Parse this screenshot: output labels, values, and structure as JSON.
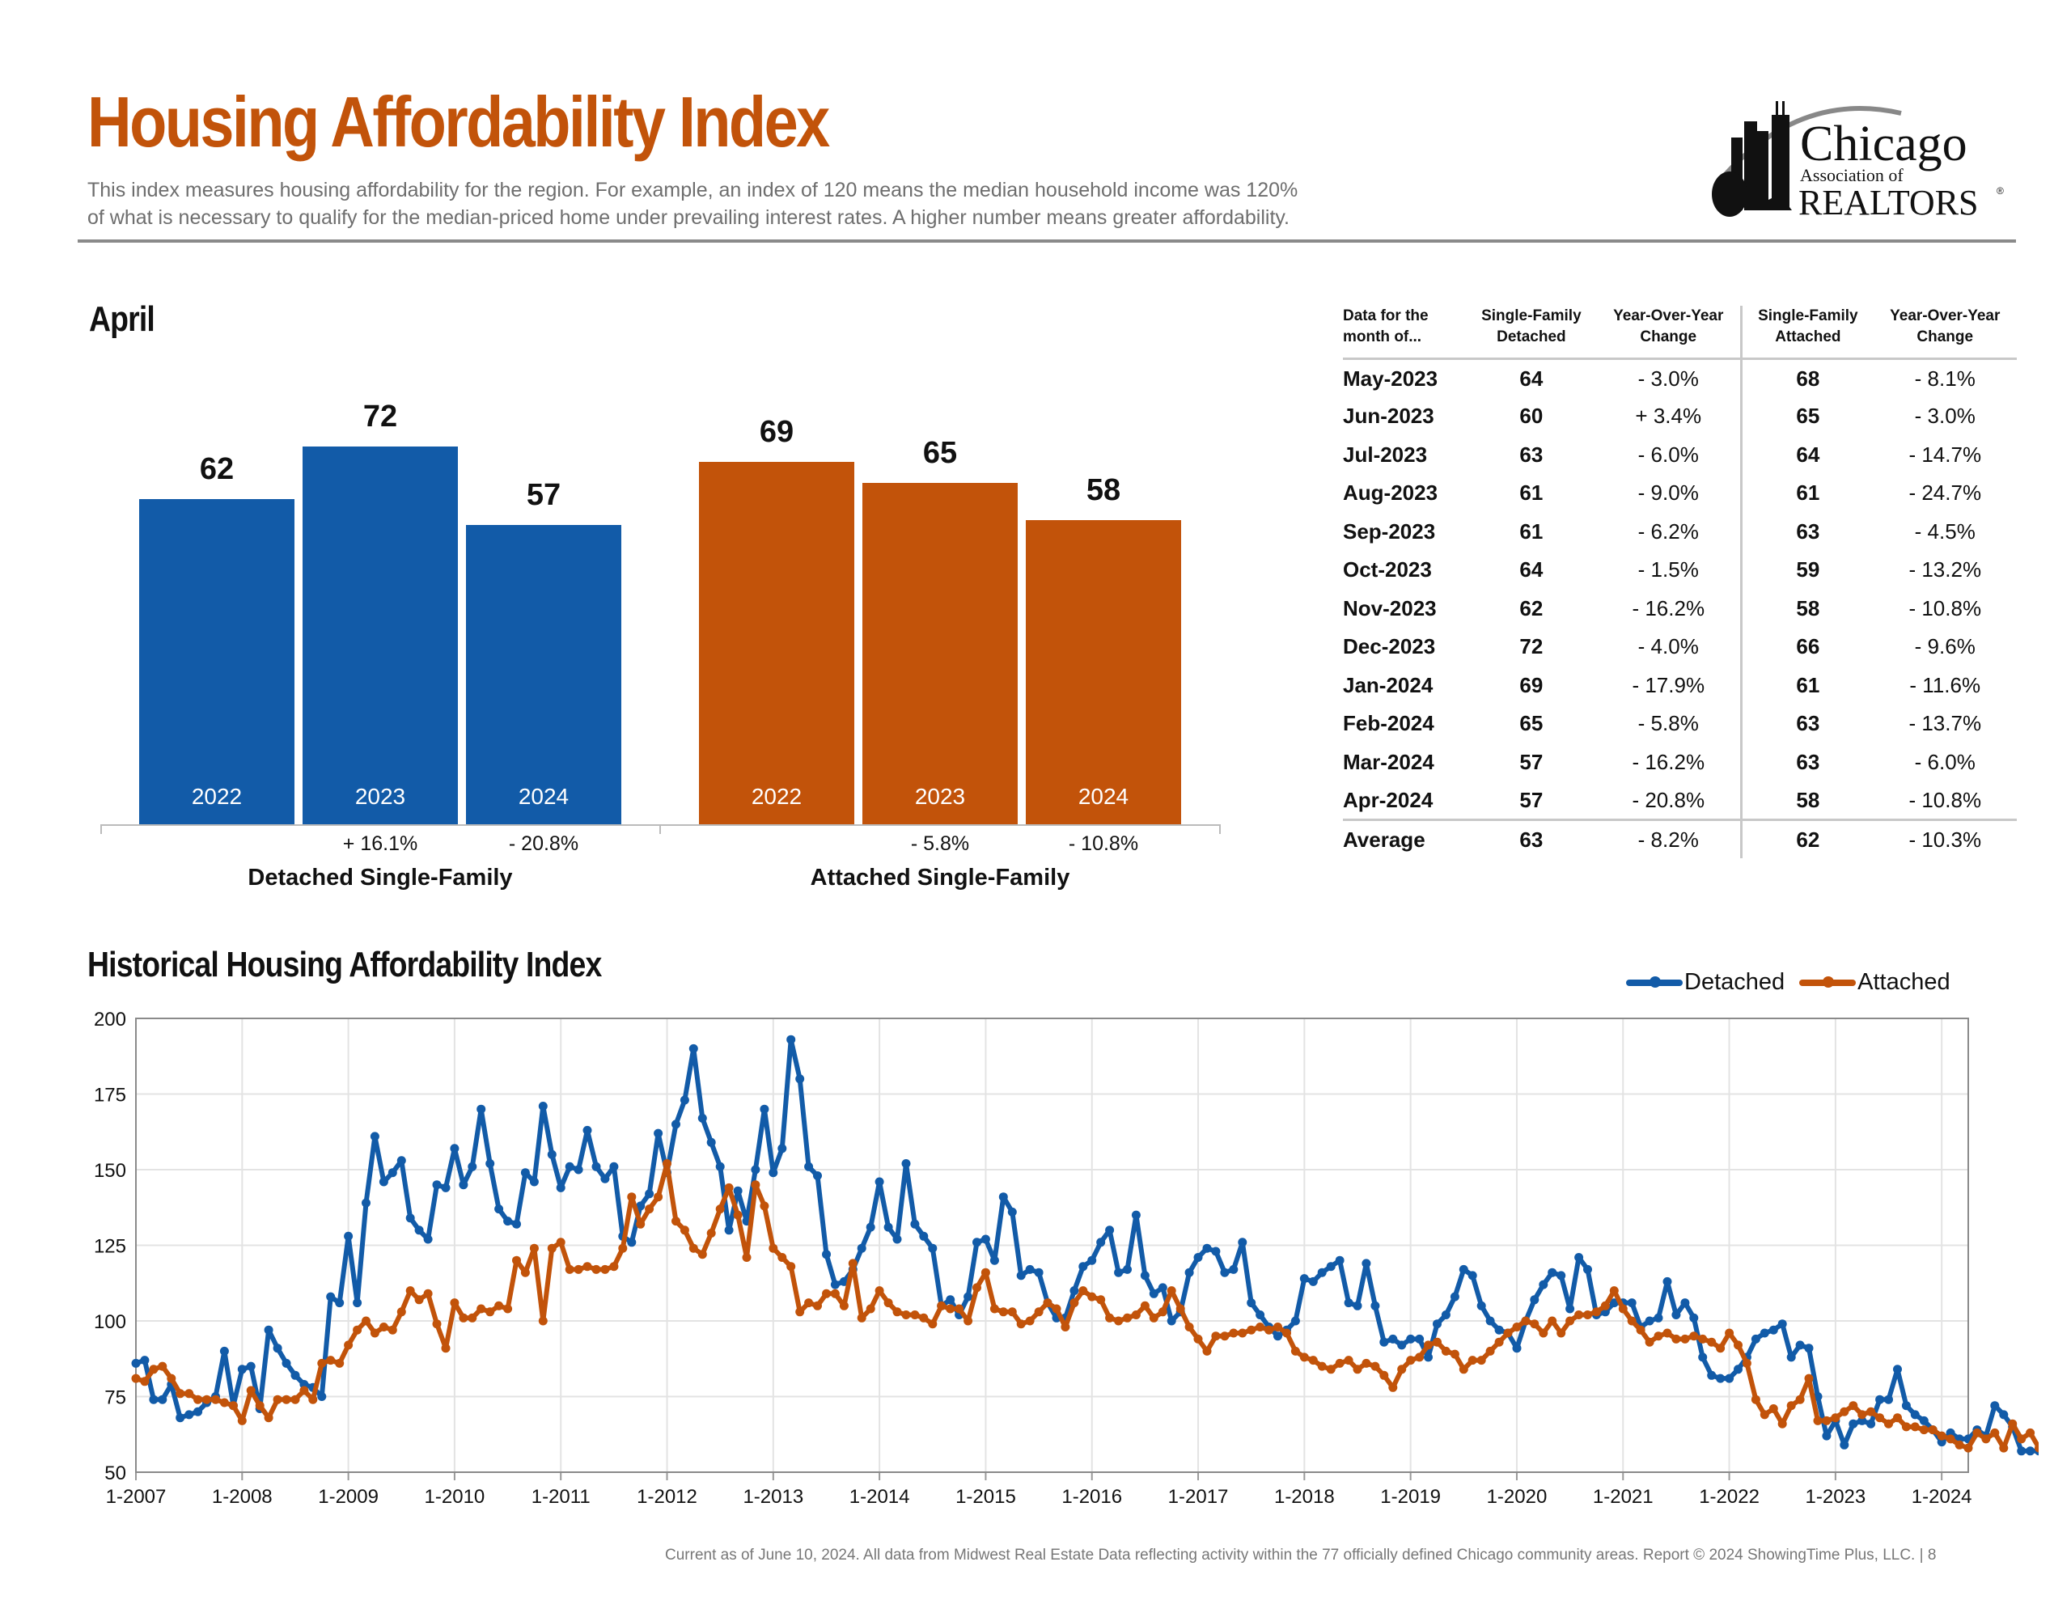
{
  "header": {
    "title": "Housing Affordability Index",
    "intro_line1": "This index measures housing affordability for the region. For example, an index of 120 means the median household income was 120%",
    "intro_line2": "of what is necessary to qualify for the median-priced home under prevailing interest rates. A higher number means greater affordability.",
    "logo": {
      "word1": "Chicago",
      "word2": "Association of",
      "word3": "REALTORS",
      "mark": "®"
    }
  },
  "colors": {
    "title": "#c2530a",
    "detached": "#125ba8",
    "attached": "#c2530a"
  },
  "april_section": {
    "title": "April"
  },
  "summary_table": {
    "headers": [
      "Data for the month of...",
      "Single-Family Detached",
      "Year-Over-Year Change",
      "Single-Family Attached",
      "Year-Over-Year Change"
    ],
    "header_lines": [
      [
        "Data for the",
        "month of..."
      ],
      [
        "Single-Family",
        "Detached"
      ],
      [
        "Year-Over-Year",
        "Change"
      ],
      [
        "Single-Family",
        "Attached"
      ],
      [
        "Year-Over-Year",
        "Change"
      ]
    ],
    "rows": [
      {
        "month": "May-2023",
        "detached": "64",
        "detached_yoy": "- 3.0%",
        "attached": "68",
        "attached_yoy": "- 8.1%"
      },
      {
        "month": "Jun-2023",
        "detached": "60",
        "detached_yoy": "+ 3.4%",
        "attached": "65",
        "attached_yoy": "- 3.0%"
      },
      {
        "month": "Jul-2023",
        "detached": "63",
        "detached_yoy": "- 6.0%",
        "attached": "64",
        "attached_yoy": "- 14.7%"
      },
      {
        "month": "Aug-2023",
        "detached": "61",
        "detached_yoy": "- 9.0%",
        "attached": "61",
        "attached_yoy": "- 24.7%"
      },
      {
        "month": "Sep-2023",
        "detached": "61",
        "detached_yoy": "- 6.2%",
        "attached": "63",
        "attached_yoy": "- 4.5%"
      },
      {
        "month": "Oct-2023",
        "detached": "64",
        "detached_yoy": "- 1.5%",
        "attached": "59",
        "attached_yoy": "- 13.2%"
      },
      {
        "month": "Nov-2023",
        "detached": "62",
        "detached_yoy": "- 16.2%",
        "attached": "58",
        "attached_yoy": "- 10.8%"
      },
      {
        "month": "Dec-2023",
        "detached": "72",
        "detached_yoy": "- 4.0%",
        "attached": "66",
        "attached_yoy": "- 9.6%"
      },
      {
        "month": "Jan-2024",
        "detached": "69",
        "detached_yoy": "- 17.9%",
        "attached": "61",
        "attached_yoy": "- 11.6%"
      },
      {
        "month": "Feb-2024",
        "detached": "65",
        "detached_yoy": "- 5.8%",
        "attached": "63",
        "attached_yoy": "- 13.7%"
      },
      {
        "month": "Mar-2024",
        "detached": "57",
        "detached_yoy": "- 16.2%",
        "attached": "63",
        "attached_yoy": "- 6.0%"
      },
      {
        "month": "Apr-2024",
        "detached": "57",
        "detached_yoy": "- 20.8%",
        "attached": "58",
        "attached_yoy": "- 10.8%"
      }
    ],
    "average": {
      "month": "Average",
      "detached": "63",
      "detached_yoy": "- 8.2%",
      "attached": "62",
      "attached_yoy": "- 10.3%"
    }
  },
  "historical_section": {
    "title": "Historical Housing Affordability Index"
  },
  "footer": {
    "text": "Current as of June 10, 2024.  All data from Midwest Real Estate Data reflecting activity within the 77 officially defined Chicago community areas. Report © 2024 ShowingTime Plus, LLC.  |  8"
  },
  "chart_data": [
    {
      "type": "bar",
      "title": "April",
      "ylim": [
        0,
        80
      ],
      "groups": [
        {
          "name": "Detached Single-Family",
          "color": "#125ba8",
          "categories": [
            "2022",
            "2023",
            "2024"
          ],
          "values": [
            62,
            72,
            57
          ],
          "changes": [
            "",
            "+ 16.1%",
            "- 20.8%"
          ]
        },
        {
          "name": "Attached Single-Family",
          "color": "#c2530a",
          "categories": [
            "2022",
            "2023",
            "2024"
          ],
          "values": [
            69,
            65,
            58
          ],
          "changes": [
            "",
            "- 5.8%",
            "- 10.8%"
          ]
        }
      ]
    },
    {
      "type": "line",
      "title": "Historical Housing Affordability Index",
      "xlabel": "",
      "ylabel": "",
      "x_start": "1-2007",
      "x_end": "4-2024",
      "frequency": "monthly",
      "x_tick_labels": [
        "1-2007",
        "1-2008",
        "1-2009",
        "1-2010",
        "1-2011",
        "1-2012",
        "1-2013",
        "1-2014",
        "1-2015",
        "1-2016",
        "1-2017",
        "1-2018",
        "1-2019",
        "1-2020",
        "1-2021",
        "1-2022",
        "1-2023",
        "1-2024"
      ],
      "y_ticks": [
        50,
        75,
        100,
        125,
        150,
        175,
        200
      ],
      "ylim": [
        50,
        200
      ],
      "grid": true,
      "legend": "top-right",
      "series": [
        {
          "name": "Detached",
          "color": "#125ba8",
          "values": [
            86,
            87,
            74,
            74,
            79,
            68,
            69,
            70,
            73,
            75,
            90,
            72,
            84,
            85,
            71,
            97,
            91,
            86,
            82,
            79,
            78,
            75,
            108,
            106,
            128,
            106,
            139,
            161,
            146,
            149,
            153,
            134,
            130,
            127,
            145,
            144,
            157,
            145,
            151,
            170,
            152,
            137,
            133,
            132,
            149,
            146,
            171,
            155,
            144,
            151,
            150,
            163,
            151,
            147,
            151,
            128,
            126,
            138,
            142,
            162,
            149,
            165,
            173,
            190,
            167,
            159,
            151,
            130,
            143,
            133,
            150,
            170,
            149,
            157,
            193,
            180,
            151,
            148,
            122,
            112,
            113,
            117,
            124,
            131,
            146,
            131,
            127,
            152,
            132,
            128,
            124,
            105,
            107,
            102,
            108,
            126,
            127,
            120,
            141,
            136,
            115,
            117,
            116,
            106,
            101,
            101,
            110,
            118,
            120,
            126,
            130,
            116,
            117,
            135,
            115,
            109,
            111,
            100,
            103,
            116,
            121,
            124,
            123,
            116,
            117,
            126,
            106,
            102,
            98,
            95,
            97,
            100,
            114,
            113,
            116,
            118,
            120,
            106,
            105,
            119,
            105,
            93,
            94,
            92,
            94,
            94,
            88,
            99,
            102,
            108,
            117,
            115,
            105,
            100,
            97,
            96,
            91,
            100,
            107,
            112,
            116,
            115,
            104,
            121,
            117,
            102,
            103,
            106,
            106,
            106,
            98,
            100,
            101,
            113,
            102,
            106,
            101,
            88,
            82,
            81,
            81,
            84,
            88,
            94,
            96,
            97,
            99,
            88,
            92,
            91,
            75,
            62,
            67,
            59,
            66,
            67,
            66,
            74,
            74,
            84,
            72,
            69,
            67,
            64,
            60,
            63,
            61,
            61,
            64,
            62,
            72,
            69,
            65,
            57,
            57,
            57
          ]
        },
        {
          "name": "Attached",
          "color": "#c2530a",
          "values": [
            81,
            80,
            84,
            85,
            81,
            76,
            76,
            74,
            74,
            74,
            73,
            72,
            67,
            77,
            72,
            68,
            74,
            74,
            74,
            77,
            74,
            86,
            87,
            86,
            92,
            97,
            100,
            96,
            98,
            97,
            103,
            110,
            107,
            109,
            99,
            91,
            106,
            101,
            101,
            104,
            103,
            105,
            104,
            120,
            116,
            124,
            100,
            124,
            126,
            117,
            117,
            118,
            117,
            117,
            118,
            124,
            141,
            132,
            137,
            141,
            152,
            133,
            130,
            124,
            122,
            129,
            137,
            144,
            135,
            121,
            145,
            138,
            124,
            121,
            118,
            103,
            106,
            105,
            109,
            109,
            105,
            119,
            101,
            104,
            110,
            106,
            103,
            102,
            102,
            101,
            99,
            105,
            104,
            104,
            100,
            111,
            116,
            104,
            103,
            103,
            99,
            100,
            103,
            106,
            104,
            98,
            106,
            110,
            108,
            107,
            101,
            100,
            101,
            102,
            105,
            101,
            103,
            110,
            104,
            98,
            94,
            90,
            95,
            95,
            96,
            96,
            97,
            98,
            97,
            98,
            96,
            90,
            88,
            87,
            85,
            84,
            86,
            87,
            84,
            86,
            85,
            82,
            78,
            84,
            87,
            88,
            92,
            93,
            90,
            89,
            84,
            87,
            87,
            90,
            93,
            96,
            98,
            100,
            99,
            96,
            100,
            96,
            100,
            102,
            102,
            103,
            105,
            110,
            104,
            100,
            97,
            93,
            95,
            96,
            94,
            94,
            95,
            94,
            93,
            91,
            96,
            92,
            86,
            74,
            69,
            71,
            66,
            72,
            74,
            81,
            67,
            67,
            68,
            70,
            72,
            69,
            70,
            68,
            66,
            68,
            65,
            65,
            64,
            64,
            62,
            61,
            59,
            58,
            63,
            61,
            63,
            58,
            66,
            61,
            63,
            58
          ]
        }
      ]
    }
  ]
}
